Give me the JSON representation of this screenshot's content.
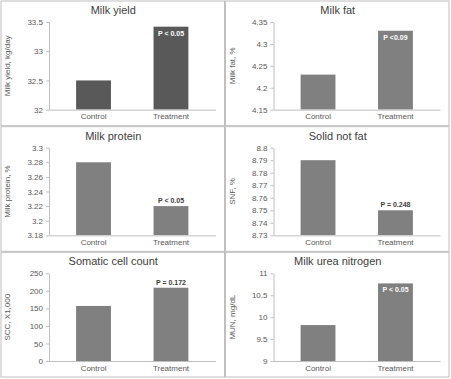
{
  "chart_data": [
    {
      "type": "bar",
      "title": "Milk yield",
      "y_label": "Milk yield, kg/day",
      "categories": [
        "Control",
        "Treatment"
      ],
      "values": [
        32.5,
        33.42
      ],
      "color": "#595959",
      "ylim": [
        32,
        33.5
      ],
      "yticks": [
        32,
        32.5,
        33,
        33.5
      ],
      "annotations": [
        {
          "text": "P < 0.05",
          "category": "Treatment"
        }
      ]
    },
    {
      "type": "bar",
      "title": "Milk fat",
      "y_label": "Milk fat, %",
      "categories": [
        "Control",
        "Treatment"
      ],
      "values": [
        4.23,
        4.33
      ],
      "color": "#808080",
      "ylim": [
        4.15,
        4.35
      ],
      "yticks": [
        4.15,
        4.2,
        4.25,
        4.3,
        4.35
      ],
      "annotations": [
        {
          "text": "P <0.09",
          "category": "Treatment"
        }
      ]
    },
    {
      "type": "bar",
      "title": "Milk protein",
      "y_label": "Milk protein, %",
      "categories": [
        "Control",
        "Treatment"
      ],
      "values": [
        3.28,
        3.22
      ],
      "color": "#808080",
      "ylim": [
        3.18,
        3.3
      ],
      "yticks": [
        3.18,
        3.2,
        3.22,
        3.24,
        3.26,
        3.28,
        3.3
      ],
      "annotations": [
        {
          "text": "P < 0.05",
          "category": "Treatment"
        }
      ]
    },
    {
      "type": "bar",
      "title": "Solid not fat",
      "y_label": "SNF, %",
      "categories": [
        "Control",
        "Treatment"
      ],
      "values": [
        8.79,
        8.75
      ],
      "color": "#808080",
      "ylim": [
        8.73,
        8.8
      ],
      "yticks": [
        8.73,
        8.74,
        8.75,
        8.76,
        8.77,
        8.78,
        8.79,
        8.8
      ],
      "annotations": [
        {
          "text": "P = 0.248",
          "category": "Treatment"
        }
      ]
    },
    {
      "type": "bar",
      "title": "Somatic cell count",
      "y_label": "SCC, X1,000",
      "categories": [
        "Control",
        "Treatment"
      ],
      "values": [
        157,
        209
      ],
      "color": "#808080",
      "ylim": [
        0,
        250
      ],
      "yticks": [
        0,
        50,
        100,
        150,
        200,
        250
      ],
      "annotations": [
        {
          "text": "P = 0.172",
          "category": "Treatment"
        }
      ]
    },
    {
      "type": "bar",
      "title": "Milk urea nitrogen",
      "y_label": "MUN, mg/dL",
      "categories": [
        "Control",
        "Treatment"
      ],
      "values": [
        9.82,
        10.77
      ],
      "color": "#808080",
      "ylim": [
        9,
        11
      ],
      "yticks": [
        9,
        9.5,
        10,
        10.5,
        11
      ],
      "annotations": [
        {
          "text": "P < 0.05",
          "category": "Treatment"
        }
      ]
    }
  ]
}
